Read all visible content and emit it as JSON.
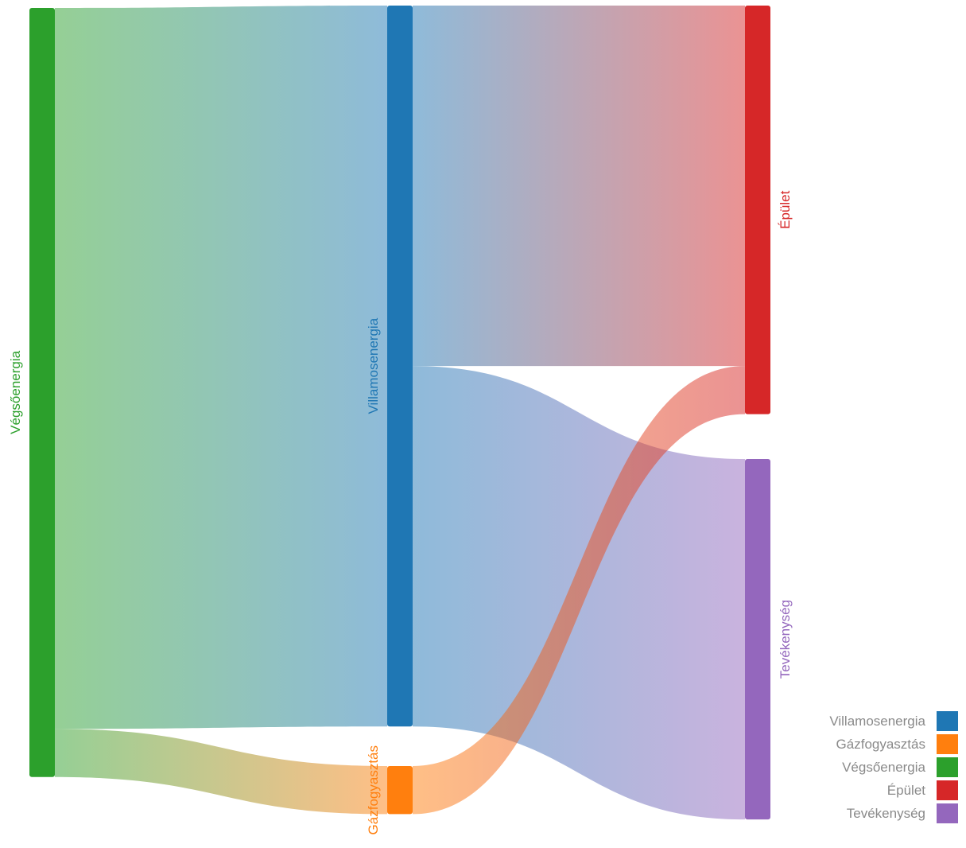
{
  "chart_data": {
    "type": "sankey",
    "nodes": [
      {
        "id": "vegso",
        "label": "Végsőenergia",
        "color": "#2ca02c"
      },
      {
        "id": "villamos",
        "label": "Villamosenergia",
        "color": "#1f77b4"
      },
      {
        "id": "gaz",
        "label": "Gázfogyasztás",
        "color": "#ff7f0e"
      },
      {
        "id": "epulet",
        "label": "Épület",
        "color": "#d62728"
      },
      {
        "id": "tev",
        "label": "Tevékenység",
        "color": "#9467bd"
      }
    ],
    "links": [
      {
        "source": "vegso",
        "target": "villamos",
        "value": 90
      },
      {
        "source": "vegso",
        "target": "gaz",
        "value": 6
      },
      {
        "source": "villamos",
        "target": "epulet",
        "value": 45
      },
      {
        "source": "villamos",
        "target": "tev",
        "value": 45
      },
      {
        "source": "gaz",
        "target": "epulet",
        "value": 6
      }
    ]
  },
  "legend": {
    "items": [
      {
        "label": "Villamosenergia",
        "color": "#1f77b4"
      },
      {
        "label": "Gázfogyasztás",
        "color": "#ff7f0e"
      },
      {
        "label": "Végsőenergia",
        "color": "#2ca02c"
      },
      {
        "label": "Épület",
        "color": "#d62728"
      },
      {
        "label": "Tevékenység",
        "color": "#9467bd"
      }
    ]
  }
}
